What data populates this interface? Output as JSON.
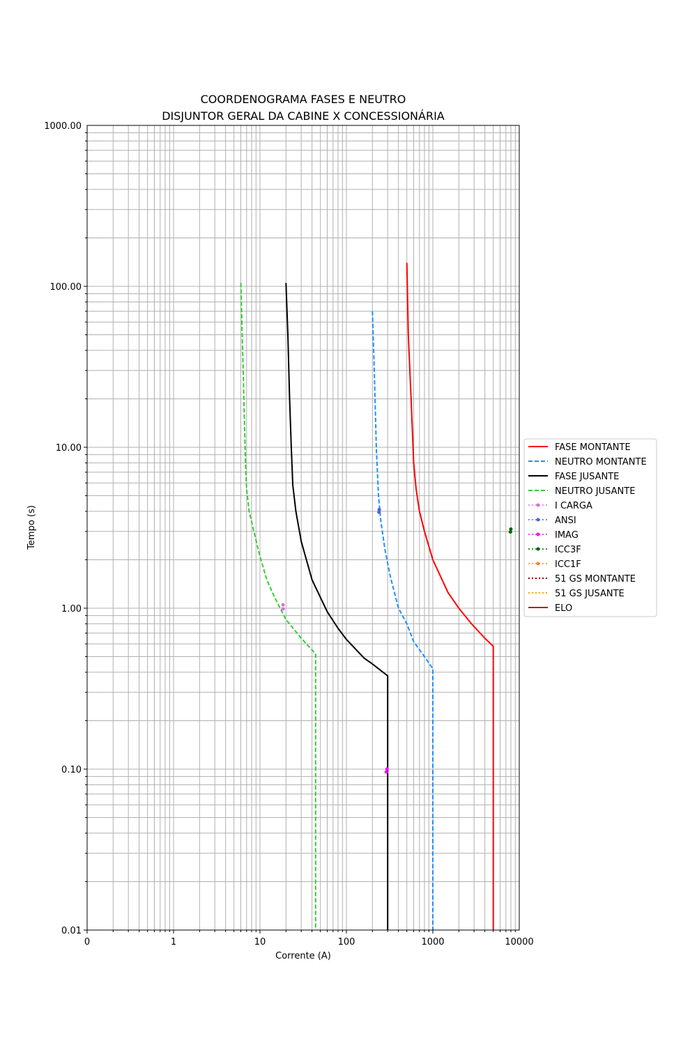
{
  "chart_data": {
    "type": "line",
    "title_line1": "COORDENOGRAMA FASES E NEUTRO",
    "title_line2": "DISJUNTOR GERAL DA CABINE X CONCESSIONÁRIA",
    "xlabel": "Corrente (A)",
    "ylabel": "Tempo (s)",
    "x_scale": "log",
    "y_scale": "log",
    "xlim": [
      0.1,
      10000
    ],
    "ylim": [
      0.01,
      1000
    ],
    "x_ticks": [
      {
        "value": 0.1,
        "label": "0"
      },
      {
        "value": 1,
        "label": "1"
      },
      {
        "value": 10,
        "label": "10"
      },
      {
        "value": 100,
        "label": "100"
      },
      {
        "value": 1000,
        "label": "1000"
      },
      {
        "value": 10000,
        "label": "10000"
      }
    ],
    "y_ticks": [
      {
        "value": 0.01,
        "label": "0.01"
      },
      {
        "value": 0.1,
        "label": "0.10"
      },
      {
        "value": 1,
        "label": "1.00"
      },
      {
        "value": 10,
        "label": "10.00"
      },
      {
        "value": 100,
        "label": "100.00"
      },
      {
        "value": 1000,
        "label": "1000.00"
      }
    ],
    "grid": true,
    "legend_position": "center-right outside",
    "series": [
      {
        "name": "FASE MONTANTE",
        "color": "#ff0000",
        "style": "solid",
        "x": [
          500,
          520,
          560,
          600,
          640,
          700,
          800,
          1000,
          1500,
          2000,
          2800,
          4000,
          5000,
          5000
        ],
        "y": [
          140,
          50,
          20,
          8,
          5.5,
          4,
          3,
          2,
          1.25,
          1.0,
          0.8,
          0.65,
          0.58,
          0.01
        ]
      },
      {
        "name": "NEUTRO MONTANTE",
        "color": "#1e90ff",
        "style": "dashed",
        "x": [
          200,
          210,
          222,
          235,
          250,
          280,
          320,
          400,
          500,
          600,
          800,
          1000,
          1000
        ],
        "y": [
          70,
          30,
          10,
          5,
          3.5,
          2.3,
          1.6,
          1.0,
          0.8,
          0.62,
          0.5,
          0.42,
          0.01
        ]
      },
      {
        "name": "FASE JUSANTE",
        "color": "#000000",
        "style": "solid",
        "x": [
          20,
          21,
          22,
          23,
          24,
          26,
          30,
          40,
          60,
          80,
          100,
          160,
          200,
          250,
          300,
          300
        ],
        "y": [
          105,
          50,
          20,
          10,
          5.8,
          4,
          2.6,
          1.5,
          0.95,
          0.75,
          0.64,
          0.49,
          0.45,
          0.41,
          0.38,
          0.01
        ]
      },
      {
        "name": "NEUTRO JUSANTE",
        "color": "#32cd32",
        "style": "dashed",
        "x": [
          6,
          6.3,
          6.6,
          6.8,
          7,
          7.5,
          8.5,
          10,
          12,
          15,
          20,
          30,
          44,
          44
        ],
        "y": [
          105,
          40,
          15,
          8,
          5.5,
          4,
          3,
          2.1,
          1.5,
          1.15,
          0.85,
          0.65,
          0.52,
          0.01
        ]
      },
      {
        "name": "I CARGA",
        "color": "#da70d6",
        "style": "dotted",
        "marker": true,
        "x": [
          18.5,
          18.5
        ],
        "y": [
          0.99,
          1.05
        ]
      },
      {
        "name": "ANSI",
        "color": "#4169e1",
        "style": "dotted",
        "marker": true,
        "x": [
          238,
          240
        ],
        "y": [
          3.95,
          4.1
        ]
      },
      {
        "name": "IMAG",
        "color": "#ff00ff",
        "style": "dotted",
        "marker": true,
        "x": [
          290,
          295
        ],
        "y": [
          0.096,
          0.1
        ]
      },
      {
        "name": "ICC3F",
        "color": "#006400",
        "style": "dotted",
        "marker": true,
        "x": [
          7900,
          8000
        ],
        "y": [
          2.98,
          3.1
        ]
      },
      {
        "name": "ICC1F",
        "color": "#ff8c00",
        "style": "dotted",
        "marker": true,
        "x": [],
        "y": []
      },
      {
        "name": "51 GS MONTANTE",
        "color": "#8b0000",
        "style": "dotted",
        "x": [],
        "y": []
      },
      {
        "name": "51 GS JUSANTE",
        "color": "#ffa500",
        "style": "dotted",
        "x": [],
        "y": []
      },
      {
        "name": "ELO",
        "color": "#b22222",
        "style": "solid",
        "x": [],
        "y": []
      }
    ]
  }
}
